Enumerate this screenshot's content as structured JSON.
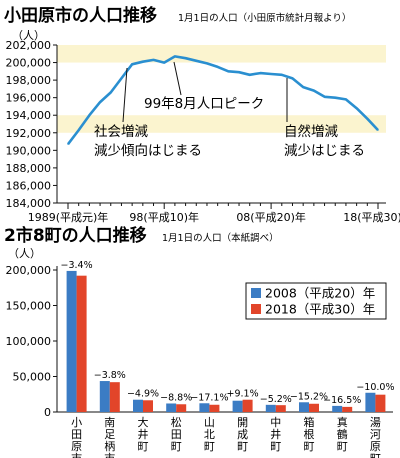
{
  "chart_data": [
    {
      "type": "line",
      "title": "小田原市の人口推移",
      "subtitle": "1月1日の人口（小田原市統計月報より）",
      "ylabel": "（人）",
      "ylim": [
        184000,
        202000
      ],
      "yticks": [
        184000,
        186000,
        188000,
        190000,
        192000,
        194000,
        196000,
        198000,
        200000,
        202000
      ],
      "ytick_labels": [
        "184,000",
        "186,000",
        "188,000",
        "190,000",
        "192,000",
        "194,000",
        "196,000",
        "198,000",
        "200,000",
        "202,000"
      ],
      "xlim": [
        1989,
        2018
      ],
      "xticks": [
        1989,
        1998,
        2008,
        2018
      ],
      "xtick_labels": [
        "1989(平成元)年",
        "98(平成10)年",
        "08(平成20)年",
        "18(平成30)年"
      ],
      "grid": false,
      "color": "#2a8fd0",
      "band_color": "#fbf4cf",
      "x": [
        1989,
        1990,
        1991,
        1992,
        1993,
        1994,
        1995,
        1996,
        1997,
        1998,
        1999,
        2000,
        2001,
        2002,
        2003,
        2004,
        2005,
        2006,
        2007,
        2008,
        2009,
        2010,
        2011,
        2012,
        2013,
        2014,
        2015,
        2016,
        2017,
        2018
      ],
      "y": [
        190700,
        192300,
        194000,
        195500,
        196600,
        198200,
        199800,
        200100,
        200300,
        200000,
        200700,
        200500,
        200200,
        199900,
        199500,
        199000,
        198900,
        198600,
        198800,
        198700,
        198600,
        198200,
        197200,
        196800,
        196100,
        196000,
        195800,
        194800,
        193600,
        192300
      ],
      "annotations": [
        {
          "id": "peak",
          "text": "99年8月人口ピーク"
        },
        {
          "id": "social",
          "lines": [
            "社会増減",
            "減少傾向はじまる"
          ]
        },
        {
          "id": "natural",
          "lines": [
            "自然増減",
            "減少はじまる"
          ]
        }
      ]
    },
    {
      "type": "bar",
      "title": "2市8町の人口推移",
      "subtitle": "1月1日の人口（本紙調べ）",
      "ylabel": "（人）",
      "ylim": [
        0,
        200000
      ],
      "yticks": [
        0,
        50000,
        100000,
        150000,
        200000
      ],
      "ytick_labels": [
        "0",
        "50,000",
        "100,000",
        "150,000",
        "200,000"
      ],
      "categories": [
        "小田原市",
        "南足柄市",
        "大井町",
        "松田町",
        "山北町",
        "開成町",
        "中井町",
        "箱根町",
        "真鶴町",
        "湯河原町"
      ],
      "changes": [
        "−3.4%",
        "−3.8%",
        "−4.9%",
        "−8.8%",
        "−17.1%",
        "+9.1%",
        "−5.2%",
        "−15.2%",
        "−16.5%",
        "−10.0%"
      ],
      "legend_position": "right",
      "series": [
        {
          "name": "2008（平成20）年",
          "color": "#3b7cc4",
          "values": [
            198700,
            43600,
            17300,
            12000,
            12300,
            15900,
            10100,
            13700,
            8600,
            27100
          ]
        },
        {
          "name": "2018（平成30）年",
          "color": "#e2452a",
          "values": [
            192000,
            42000,
            16500,
            10900,
            10200,
            17300,
            9600,
            11600,
            7200,
            24400
          ]
        }
      ]
    }
  ]
}
